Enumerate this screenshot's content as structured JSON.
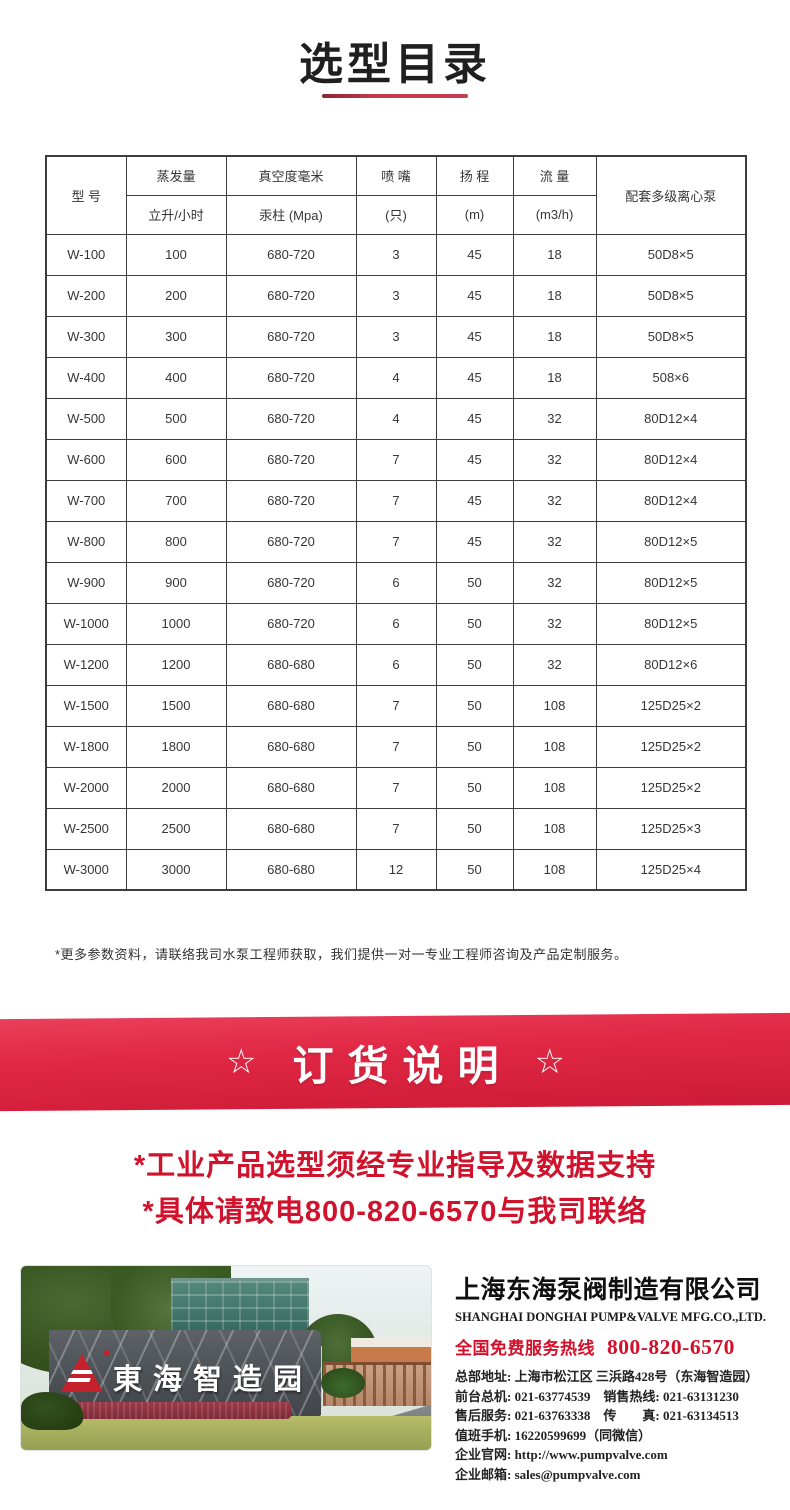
{
  "page": {
    "title": "选型目录",
    "footnote": "*更多参数资料，请联络我司水泵工程师获取，我们提供一对一专业工程师咨询及产品定制服务。"
  },
  "colors": {
    "accent_red": "#d0122c",
    "ribbon_red": "#e02744",
    "table_border": "#3d3d3d",
    "logo_red": "#c6202c"
  },
  "table": {
    "header": {
      "model": "型 号",
      "evaporation": "蒸发量",
      "evaporation_unit": "立升/小时",
      "vacuum": "真空度毫米",
      "vacuum_unit": "汞柱 (Mpa)",
      "nozzle": "喷 嘴",
      "nozzle_unit": "(只)",
      "head": "扬 程",
      "head_unit": "(m)",
      "flow": "流 量",
      "flow_unit": "(m3/h)",
      "pump": "配套多级离心泵"
    },
    "rows": [
      [
        "W-100",
        "100",
        "680-720",
        "3",
        "45",
        "18",
        "50D8×5"
      ],
      [
        "W-200",
        "200",
        "680-720",
        "3",
        "45",
        "18",
        "50D8×5"
      ],
      [
        "W-300",
        "300",
        "680-720",
        "3",
        "45",
        "18",
        "50D8×5"
      ],
      [
        "W-400",
        "400",
        "680-720",
        "4",
        "45",
        "18",
        "508×6"
      ],
      [
        "W-500",
        "500",
        "680-720",
        "4",
        "45",
        "32",
        "80D12×4"
      ],
      [
        "W-600",
        "600",
        "680-720",
        "7",
        "45",
        "32",
        "80D12×4"
      ],
      [
        "W-700",
        "700",
        "680-720",
        "7",
        "45",
        "32",
        "80D12×4"
      ],
      [
        "W-800",
        "800",
        "680-720",
        "7",
        "45",
        "32",
        "80D12×5"
      ],
      [
        "W-900",
        "900",
        "680-720",
        "6",
        "50",
        "32",
        "80D12×5"
      ],
      [
        "W-1000",
        "1000",
        "680-720",
        "6",
        "50",
        "32",
        "80D12×5"
      ],
      [
        "W-1200",
        "1200",
        "680-680",
        "6",
        "50",
        "32",
        "80D12×6"
      ],
      [
        "W-1500",
        "1500",
        "680-680",
        "7",
        "50",
        "108",
        "125D25×2"
      ],
      [
        "W-1800",
        "1800",
        "680-680",
        "7",
        "50",
        "108",
        "125D25×2"
      ],
      [
        "W-2000",
        "2000",
        "680-680",
        "7",
        "50",
        "108",
        "125D25×2"
      ],
      [
        "W-2500",
        "2500",
        "680-680",
        "7",
        "50",
        "108",
        "125D25×3"
      ],
      [
        "W-3000",
        "3000",
        "680-680",
        "12",
        "50",
        "108",
        "125D25×4"
      ]
    ]
  },
  "order_banner": {
    "star_left": "☆",
    "text": "订货说明",
    "star_right": "☆"
  },
  "order_notice": {
    "line1": "*工业产品选型须经专业指导及数据支持",
    "line2": "*具体请致电800-820-6570与我司联络"
  },
  "footer": {
    "photo_sign_text": "東海智造园",
    "company_name_cn": "上海东海泵阀制造有限公司",
    "company_name_en": "SHANGHAI DONGHAI PUMP&VALVE MFG.CO.,LTD.",
    "hotline_label": "全国免费服务热线",
    "hotline_number": "800-820-6570",
    "contact_lines": [
      "总部地址: 上海市松江区 三浜路428号（东海智造园）",
      "前台总机: 021-63774539　销售热线: 021-63131230",
      "售后服务: 021-63763338　传　　真: 021-63134513",
      "值班手机: 16220599699（同微信）",
      "企业官网: http://www.pumpvalve.com",
      "企业邮箱: sales@pumpvalve.com"
    ]
  }
}
